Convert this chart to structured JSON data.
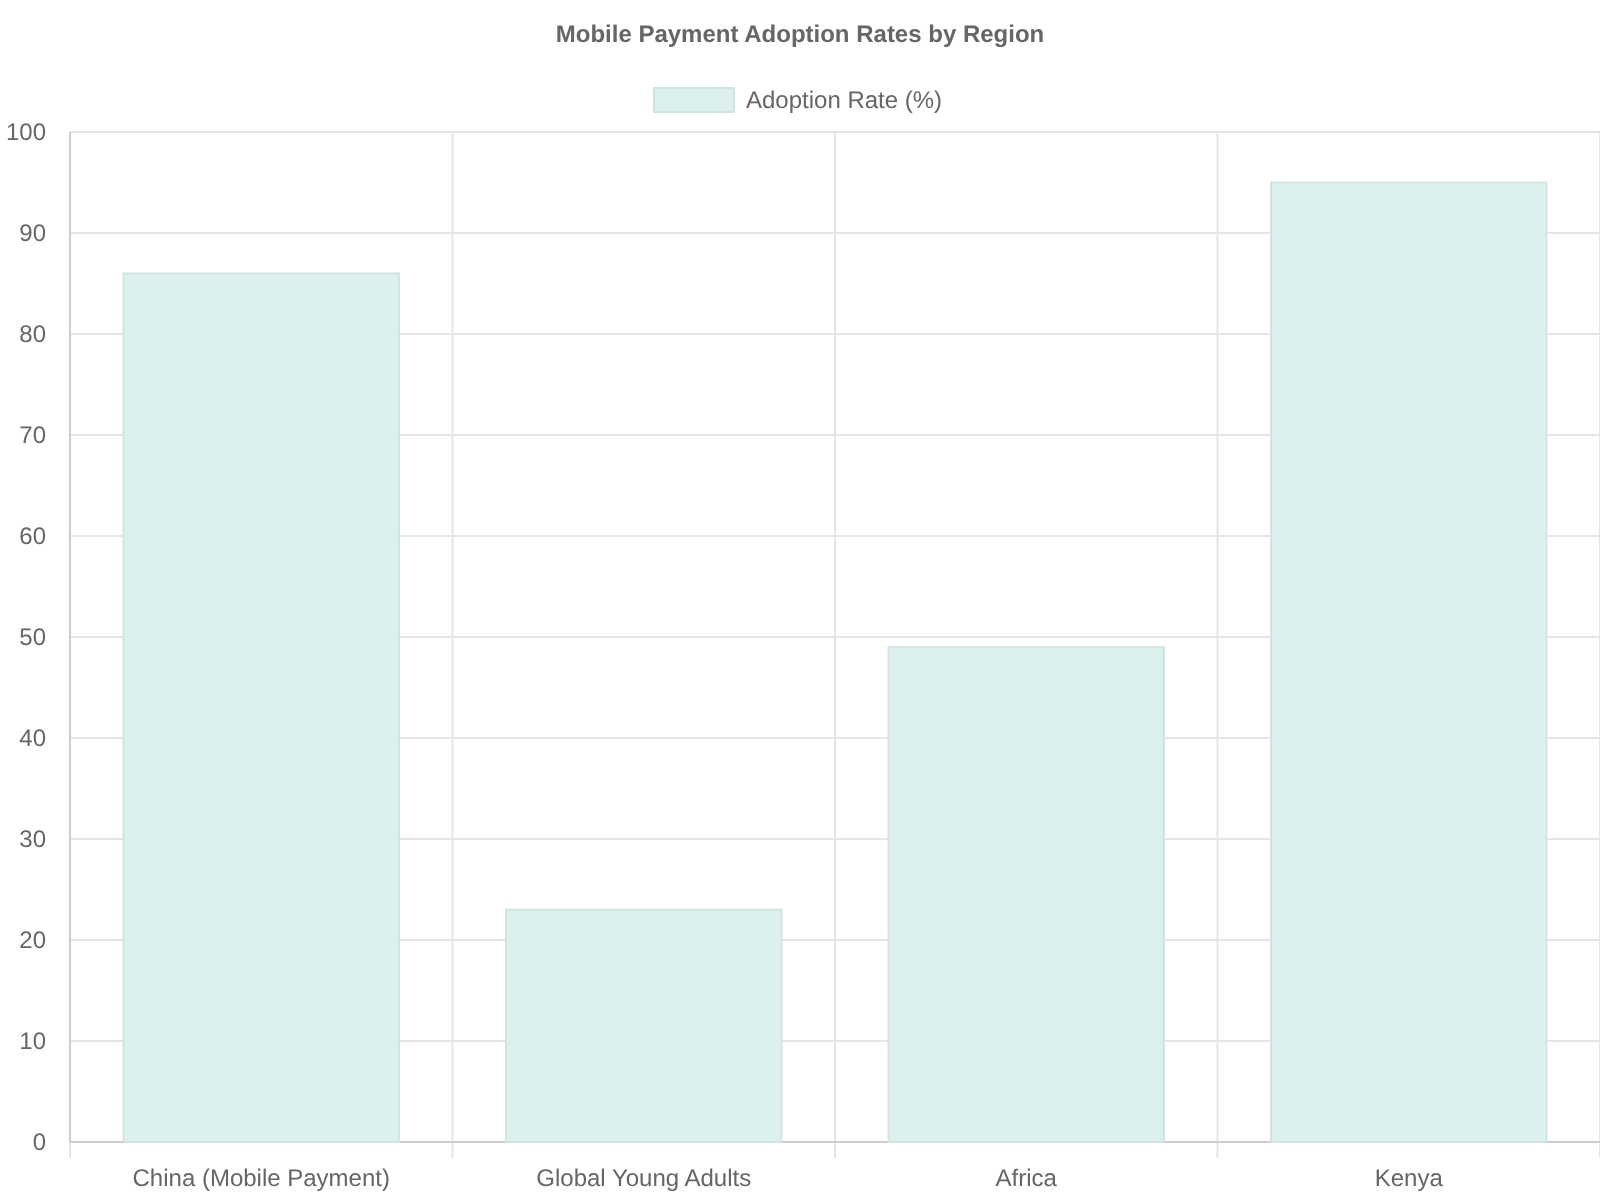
{
  "chart_data": {
    "type": "bar",
    "title": "Mobile Payment Adoption Rates by Region",
    "categories": [
      "China (Mobile Payment)",
      "Global Young Adults",
      "Africa",
      "Kenya"
    ],
    "series": [
      {
        "name": "Adoption Rate (%)",
        "color": "#dcf1ee",
        "values": [
          86,
          23,
          49,
          95
        ]
      }
    ],
    "ylim": [
      0,
      100
    ],
    "yticks": [
      0,
      10,
      20,
      30,
      40,
      50,
      60,
      70,
      80,
      90,
      100
    ],
    "grid": true,
    "legend": "top"
  }
}
